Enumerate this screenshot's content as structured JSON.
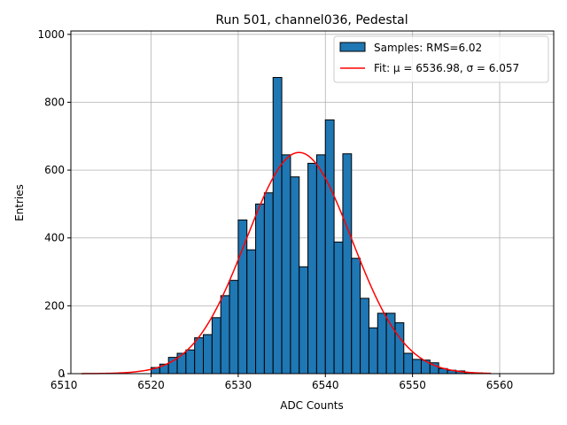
{
  "chart_data": {
    "type": "bar",
    "title": "Run 501, channel036, Pedestal",
    "xlabel": "ADC Counts",
    "ylabel": "Entries",
    "xlim": [
      6510.8,
      6566.2
    ],
    "ylim": [
      0,
      1010
    ],
    "xticks": [
      6510,
      6520,
      6530,
      6540,
      6550,
      6560
    ],
    "yticks": [
      0,
      200,
      400,
      600,
      800,
      1000
    ],
    "grid": true,
    "legend_position": "top-right",
    "histogram": {
      "name": "Samples: RMS=6.02",
      "color": "#1f77b4",
      "edge_color": "#000000",
      "bins": [
        {
          "x0": 6520.0,
          "x1": 6521.0,
          "count": 18
        },
        {
          "x0": 6521.0,
          "x1": 6522.0,
          "count": 28
        },
        {
          "x0": 6522.0,
          "x1": 6523.0,
          "count": 48
        },
        {
          "x0": 6523.0,
          "x1": 6524.0,
          "count": 60
        },
        {
          "x0": 6524.0,
          "x1": 6525.0,
          "count": 70
        },
        {
          "x0": 6525.0,
          "x1": 6526.0,
          "count": 106
        },
        {
          "x0": 6526.0,
          "x1": 6527.0,
          "count": 115
        },
        {
          "x0": 6527.0,
          "x1": 6528.0,
          "count": 165
        },
        {
          "x0": 6528.0,
          "x1": 6529.0,
          "count": 230
        },
        {
          "x0": 6529.0,
          "x1": 6530.0,
          "count": 275
        },
        {
          "x0": 6530.0,
          "x1": 6531.0,
          "count": 453
        },
        {
          "x0": 6531.0,
          "x1": 6532.0,
          "count": 365
        },
        {
          "x0": 6532.0,
          "x1": 6533.0,
          "count": 500
        },
        {
          "x0": 6533.0,
          "x1": 6534.0,
          "count": 533
        },
        {
          "x0": 6534.0,
          "x1": 6535.0,
          "count": 873
        },
        {
          "x0": 6535.0,
          "x1": 6536.0,
          "count": 645
        },
        {
          "x0": 6536.0,
          "x1": 6537.0,
          "count": 580
        },
        {
          "x0": 6537.0,
          "x1": 6538.0,
          "count": 315
        },
        {
          "x0": 6538.0,
          "x1": 6539.0,
          "count": 620
        },
        {
          "x0": 6539.0,
          "x1": 6540.0,
          "count": 645
        },
        {
          "x0": 6540.0,
          "x1": 6541.0,
          "count": 748
        },
        {
          "x0": 6541.0,
          "x1": 6542.0,
          "count": 388
        },
        {
          "x0": 6542.0,
          "x1": 6543.0,
          "count": 648
        },
        {
          "x0": 6543.0,
          "x1": 6544.0,
          "count": 340
        },
        {
          "x0": 6544.0,
          "x1": 6545.0,
          "count": 222
        },
        {
          "x0": 6545.0,
          "x1": 6546.0,
          "count": 135
        },
        {
          "x0": 6546.0,
          "x1": 6547.0,
          "count": 178
        },
        {
          "x0": 6547.0,
          "x1": 6548.0,
          "count": 178
        },
        {
          "x0": 6548.0,
          "x1": 6549.0,
          "count": 150
        },
        {
          "x0": 6549.0,
          "x1": 6550.0,
          "count": 60
        },
        {
          "x0": 6550.0,
          "x1": 6551.0,
          "count": 42
        },
        {
          "x0": 6551.0,
          "x1": 6552.0,
          "count": 40
        },
        {
          "x0": 6552.0,
          "x1": 6553.0,
          "count": 32
        },
        {
          "x0": 6553.0,
          "x1": 6554.0,
          "count": 15
        },
        {
          "x0": 6554.0,
          "x1": 6555.0,
          "count": 10
        },
        {
          "x0": 6555.0,
          "x1": 6556.0,
          "count": 8
        },
        {
          "x0": 6556.0,
          "x1": 6557.0,
          "count": 3
        },
        {
          "x0": 6557.0,
          "x1": 6558.0,
          "count": 2
        }
      ]
    },
    "fit": {
      "name": "Fit: μ = 6536.98, σ = 6.057",
      "color": "#ff0000",
      "mu": 6536.98,
      "sigma": 6.057,
      "amplitude": 652,
      "x_range": [
        6512,
        6559
      ]
    }
  }
}
